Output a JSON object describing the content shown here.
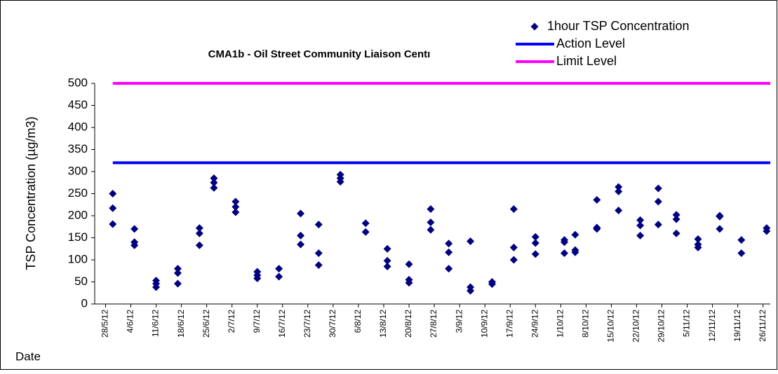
{
  "chart_data": {
    "type": "scatter",
    "title": "CMA1b - Oil Street Community Liaison Centı",
    "x_label": "Date",
    "y_label": "TSP Concentration (µg/m3)",
    "xlim": [
      "25/5/12",
      "28/11/12"
    ],
    "xticks": [
      "28/5/12",
      "4/6/12",
      "11/6/12",
      "18/6/12",
      "25/6/12",
      "2/7/12",
      "9/7/12",
      "16/7/12",
      "23/7/12",
      "30/7/12",
      "6/8/12",
      "13/8/12",
      "20/8/12",
      "27/8/12",
      "3/9/12",
      "10/9/12",
      "17/9/12",
      "24/9/12",
      "1/10/12",
      "8/10/12",
      "15/10/12",
      "22/10/12",
      "29/10/12",
      "5/11/12",
      "12/11/12",
      "19/11/12",
      "26/11/12"
    ],
    "ylim": [
      0,
      500
    ],
    "yticks": [
      0,
      50,
      100,
      150,
      200,
      250,
      300,
      350,
      400,
      450,
      500
    ],
    "legend": "top-right",
    "series": [
      {
        "name": "1hour TSP Concentration",
        "type": "scatter",
        "color": "#000080",
        "x": [
          "30/5/12",
          "30/5/12",
          "30/5/12",
          "5/6/12",
          "5/6/12",
          "5/6/12",
          "11/6/12",
          "11/6/12",
          "11/6/12",
          "17/6/12",
          "17/6/12",
          "17/6/12",
          "23/6/12",
          "23/6/12",
          "23/6/12",
          "27/6/12",
          "27/6/12",
          "27/6/12",
          "3/7/12",
          "3/7/12",
          "3/7/12",
          "9/7/12",
          "9/7/12",
          "9/7/12",
          "15/7/12",
          "15/7/12",
          "21/7/12",
          "21/7/12",
          "21/7/12",
          "26/7/12",
          "26/7/12",
          "26/7/12",
          "1/8/12",
          "1/8/12",
          "1/8/12",
          "8/8/12",
          "8/8/12",
          "14/8/12",
          "14/8/12",
          "14/8/12",
          "20/8/12",
          "20/8/12",
          "20/8/12",
          "26/8/12",
          "26/8/12",
          "26/8/12",
          "31/8/12",
          "31/8/12",
          "31/8/12",
          "6/9/12",
          "6/9/12",
          "6/9/12",
          "12/9/12",
          "12/9/12",
          "18/9/12",
          "18/9/12",
          "18/9/12",
          "24/9/12",
          "24/9/12",
          "24/9/12",
          "2/10/12",
          "2/10/12",
          "2/10/12",
          "5/10/12",
          "5/10/12",
          "5/10/12",
          "11/10/12",
          "11/10/12",
          "11/10/12",
          "17/10/12",
          "17/10/12",
          "17/10/12",
          "23/10/12",
          "23/10/12",
          "23/10/12",
          "28/10/12",
          "28/10/12",
          "28/10/12",
          "2/11/12",
          "2/11/12",
          "2/11/12",
          "8/11/12",
          "8/11/12",
          "8/11/12",
          "14/11/12",
          "14/11/12",
          "14/11/12",
          "20/11/12",
          "20/11/12",
          "27/11/12",
          "27/11/12"
        ],
        "values": [
          250,
          217,
          181,
          170,
          140,
          133,
          53,
          46,
          38,
          80,
          70,
          46,
          172,
          160,
          133,
          285,
          275,
          263,
          232,
          220,
          208,
          73,
          65,
          58,
          80,
          62,
          205,
          155,
          135,
          180,
          115,
          88,
          293,
          285,
          277,
          183,
          163,
          125,
          98,
          85,
          90,
          55,
          48,
          215,
          185,
          168,
          137,
          117,
          80,
          142,
          38,
          30,
          50,
          45,
          215,
          128,
          100,
          152,
          138,
          113,
          145,
          140,
          115,
          157,
          122,
          117,
          236,
          173,
          170,
          265,
          255,
          212,
          190,
          178,
          155,
          262,
          232,
          180,
          202,
          192,
          160,
          147,
          135,
          128,
          200,
          198,
          170,
          145,
          115,
          172,
          165
        ]
      },
      {
        "name": "Action Level",
        "type": "line",
        "color": "#0000ff",
        "x": [
          "30/5/12",
          "28/11/12"
        ],
        "values": [
          320,
          320
        ]
      },
      {
        "name": "Limit Level",
        "type": "line",
        "color": "#ff00ff",
        "x": [
          "30/5/12",
          "28/11/12"
        ],
        "values": [
          500,
          500
        ]
      }
    ]
  }
}
